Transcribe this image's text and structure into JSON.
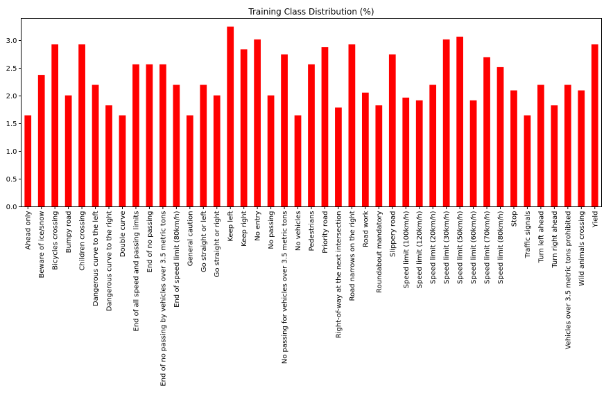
{
  "chart_data": {
    "type": "bar",
    "title": "Training Class Distribution (%)",
    "xlabel": "",
    "ylabel": "",
    "ylim": [
      0,
      3.4
    ],
    "yticks": [
      0.0,
      0.5,
      1.0,
      1.5,
      2.0,
      2.5,
      3.0
    ],
    "ytick_labels": [
      "0.0",
      "0.5",
      "1.0",
      "1.5",
      "2.0",
      "2.5",
      "3.0"
    ],
    "grid": false,
    "bar_color": "#ff0000",
    "categories": [
      "Ahead only",
      "Beware of ice/snow",
      "Bicycles crossing",
      "Bumpy road",
      "Children crossing",
      "Dangerous curve to the left",
      "Dangerous curve to the right",
      "Double curve",
      "End of all speed and passing limits",
      "End of no passing",
      "End of no passing by vehicles over 3.5 metric tons",
      "End of speed limit (80km/h)",
      "General caution",
      "Go straight or left",
      "Go straight or right",
      "Keep left",
      "Keep right",
      "No entry",
      "No passing",
      "No passing for vehicles over 3.5 metric tons",
      "No vehicles",
      "Pedestrians",
      "Priority road",
      "Right-of-way at the next intersection",
      "Road narrows on the right",
      "Road work",
      "Roundabout mandatory",
      "Slippery road",
      "Speed limit (100km/h)",
      "Speed limit (120km/h)",
      "Speed limit (20km/h)",
      "Speed limit (30km/h)",
      "Speed limit (50km/h)",
      "Speed limit (60km/h)",
      "Speed limit (70km/h)",
      "Speed limit (80km/h)",
      "Stop",
      "Traffic signals",
      "Turn left ahead",
      "Turn right ahead",
      "Vehicles over 3.5 metric tons prohibited",
      "Wild animals crossing",
      "Yield"
    ],
    "values": [
      1.65,
      2.38,
      2.93,
      2.01,
      2.93,
      2.2,
      1.83,
      1.65,
      2.57,
      2.57,
      2.57,
      2.2,
      1.65,
      2.2,
      2.01,
      3.25,
      2.84,
      3.02,
      2.01,
      2.75,
      1.65,
      2.57,
      2.88,
      1.79,
      2.93,
      2.06,
      1.83,
      2.75,
      1.97,
      1.92,
      2.2,
      3.02,
      3.07,
      1.92,
      2.7,
      2.52,
      2.1,
      1.65,
      2.2,
      1.83,
      2.2,
      2.1,
      2.93
    ]
  }
}
